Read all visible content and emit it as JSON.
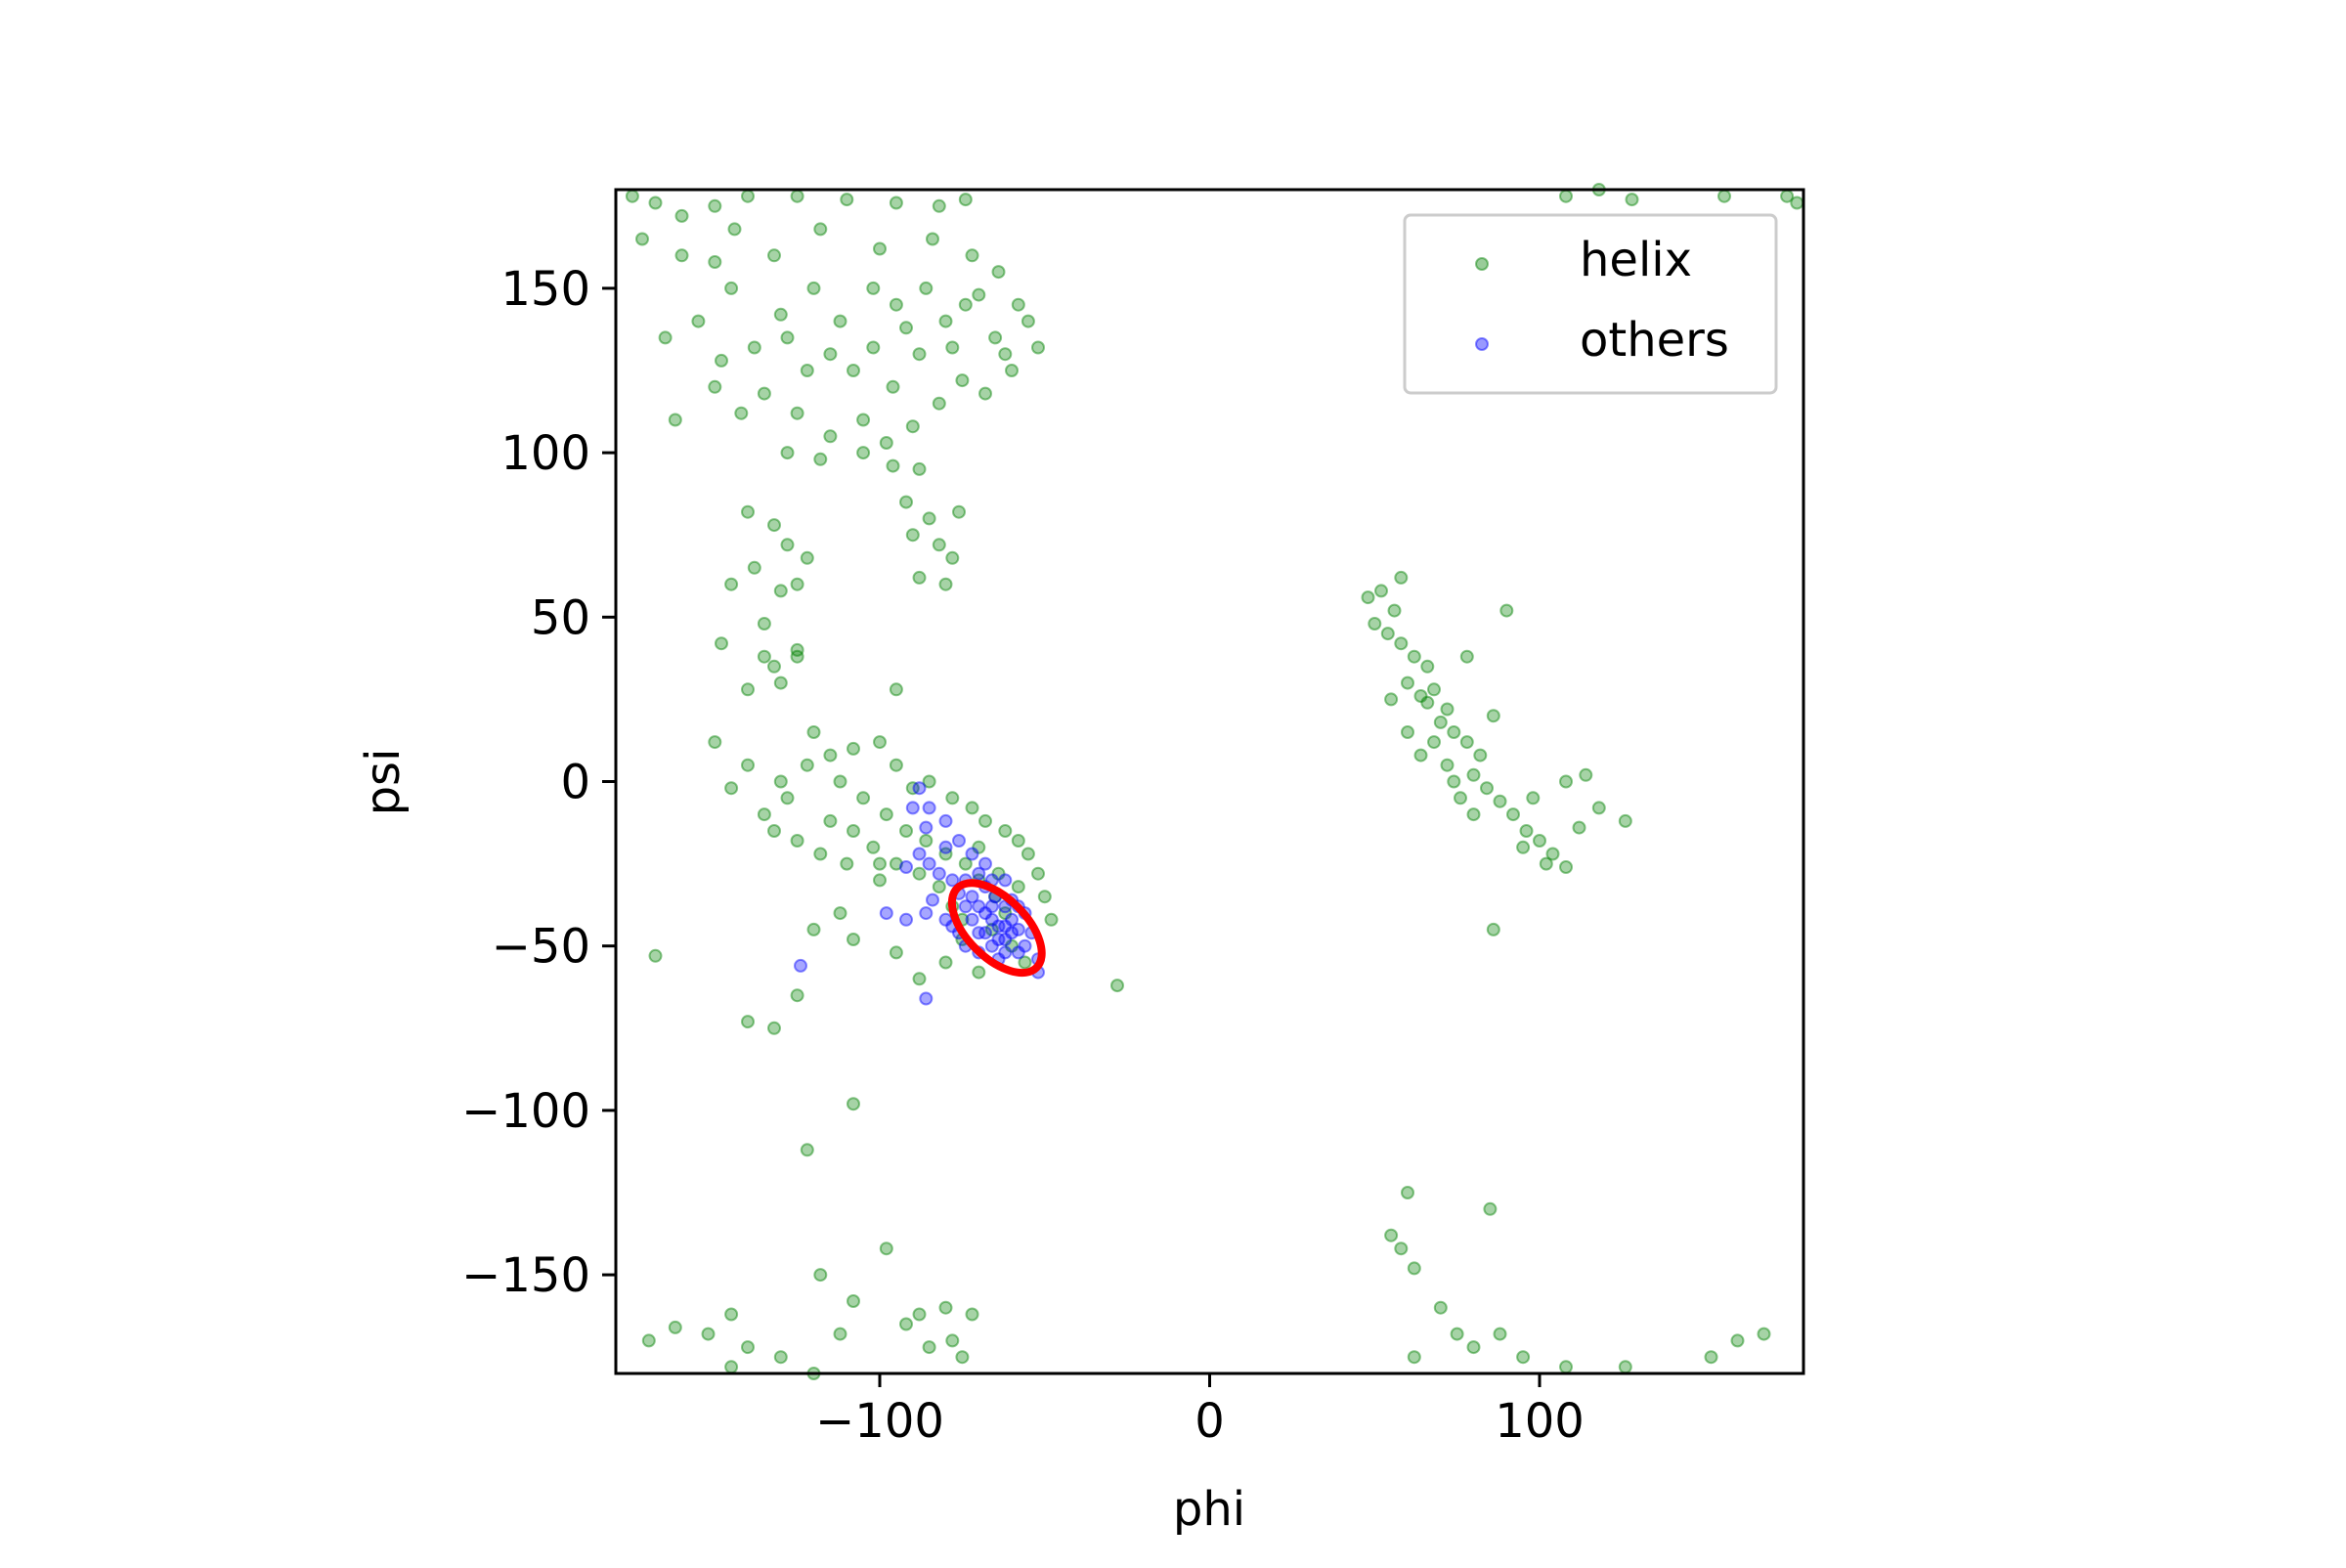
{
  "chart_data": {
    "type": "scatter",
    "title": "",
    "xlabel": "phi",
    "ylabel": "psi",
    "xlim": [
      -180,
      180
    ],
    "ylim": [
      -180,
      180
    ],
    "x_ticks": [
      -100,
      0,
      100
    ],
    "y_ticks": [
      150,
      100,
      50,
      0,
      -50,
      -100,
      -150
    ],
    "x_tick_labels": [
      "−100",
      "0",
      "100"
    ],
    "y_tick_labels": [
      "150",
      "100",
      "50",
      "0",
      "−50",
      "−100",
      "−150"
    ],
    "grid": false,
    "legend_position": "top-right",
    "colors": {
      "helix": "#008000",
      "others": "#0000ff",
      "ellipse": "#ff0000"
    },
    "series": [
      {
        "name": "helix",
        "points": [
          [
            -175,
            178
          ],
          [
            -168,
            176
          ],
          [
            -160,
            172
          ],
          [
            -150,
            175
          ],
          [
            -140,
            178
          ],
          [
            -125,
            178
          ],
          [
            -110,
            177
          ],
          [
            -95,
            176
          ],
          [
            -82,
            175
          ],
          [
            -74,
            177
          ],
          [
            -172,
            165
          ],
          [
            -160,
            160
          ],
          [
            -150,
            158
          ],
          [
            -145,
            150
          ],
          [
            -155,
            140
          ],
          [
            -165,
            135
          ],
          [
            -148,
            128
          ],
          [
            -138,
            132
          ],
          [
            -130,
            142
          ],
          [
            -120,
            150
          ],
          [
            -112,
            140
          ],
          [
            -102,
            132
          ],
          [
            -96,
            120
          ],
          [
            -88,
            130
          ],
          [
            -80,
            140
          ],
          [
            -70,
            148
          ],
          [
            -65,
            135
          ],
          [
            -60,
            125
          ],
          [
            -55,
            140
          ],
          [
            -52,
            132
          ],
          [
            -150,
            120
          ],
          [
            -142,
            112
          ],
          [
            -135,
            118
          ],
          [
            -125,
            112
          ],
          [
            -115,
            105
          ],
          [
            -105,
            110
          ],
          [
            -98,
            103
          ],
          [
            -90,
            108
          ],
          [
            -82,
            115
          ],
          [
            -75,
            122
          ],
          [
            -68,
            118
          ],
          [
            -62,
            130
          ],
          [
            -58,
            145
          ],
          [
            -64,
            155
          ],
          [
            -72,
            160
          ],
          [
            -84,
            165
          ],
          [
            -100,
            162
          ],
          [
            -118,
            168
          ],
          [
            -132,
            160
          ],
          [
            -144,
            168
          ],
          [
            -108,
            125
          ],
          [
            -115,
            130
          ],
          [
            -122,
            125
          ],
          [
            -128,
            135
          ],
          [
            -95,
            145
          ],
          [
            -86,
            150
          ],
          [
            -92,
            138
          ],
          [
            -78,
            132
          ],
          [
            -74,
            145
          ],
          [
            -102,
            150
          ],
          [
            -162,
            110
          ],
          [
            -128,
            100
          ],
          [
            -118,
            98
          ],
          [
            -105,
            100
          ],
          [
            -96,
            96
          ],
          [
            -88,
            95
          ],
          [
            -140,
            82
          ],
          [
            -132,
            78
          ],
          [
            -128,
            72
          ],
          [
            -138,
            65
          ],
          [
            -145,
            60
          ],
          [
            -130,
            58
          ],
          [
            -135,
            48
          ],
          [
            -122,
            68
          ],
          [
            -125,
            60
          ],
          [
            -92,
            85
          ],
          [
            -85,
            80
          ],
          [
            -82,
            72
          ],
          [
            -88,
            62
          ],
          [
            -80,
            60
          ],
          [
            -78,
            68
          ],
          [
            -90,
            75
          ],
          [
            -76,
            82
          ],
          [
            -148,
            42
          ],
          [
            -135,
            38
          ],
          [
            -130,
            30
          ],
          [
            -140,
            28
          ],
          [
            -125,
            40
          ],
          [
            -132,
            35
          ],
          [
            -150,
            12
          ],
          [
            -140,
            5
          ],
          [
            -145,
            -2
          ],
          [
            -130,
            0
          ],
          [
            -122,
            5
          ],
          [
            -115,
            8
          ],
          [
            -108,
            10
          ],
          [
            -100,
            12
          ],
          [
            -95,
            5
          ],
          [
            -90,
            -2
          ],
          [
            -85,
            0
          ],
          [
            -78,
            -5
          ],
          [
            -72,
            -8
          ],
          [
            -68,
            -12
          ],
          [
            -62,
            -15
          ],
          [
            -58,
            -18
          ],
          [
            -55,
            -22
          ],
          [
            -52,
            -28
          ],
          [
            -50,
            -35
          ],
          [
            -48,
            -42
          ],
          [
            -132,
            -15
          ],
          [
            -125,
            -18
          ],
          [
            -118,
            -22
          ],
          [
            -110,
            -25
          ],
          [
            -102,
            -20
          ],
          [
            -95,
            -25
          ],
          [
            -88,
            -28
          ],
          [
            -82,
            -32
          ],
          [
            -78,
            -38
          ],
          [
            -75,
            -42
          ],
          [
            -120,
            15
          ],
          [
            -112,
            0
          ],
          [
            -105,
            -5
          ],
          [
            -98,
            -10
          ],
          [
            -92,
            -15
          ],
          [
            -86,
            -18
          ],
          [
            -80,
            -22
          ],
          [
            -74,
            -25
          ],
          [
            -70,
            -30
          ],
          [
            -65,
            -35
          ],
          [
            -128,
            -5
          ],
          [
            -135,
            -10
          ],
          [
            -115,
            -12
          ],
          [
            -108,
            -15
          ],
          [
            -100,
            -30
          ],
          [
            -112,
            -40
          ],
          [
            -120,
            -45
          ],
          [
            -108,
            -48
          ],
          [
            -95,
            -52
          ],
          [
            -88,
            -60
          ],
          [
            -70,
            -58
          ],
          [
            -80,
            -55
          ],
          [
            -75,
            -48
          ],
          [
            -66,
            -45
          ],
          [
            -60,
            -50
          ],
          [
            -56,
            -55
          ],
          [
            -62,
            -40
          ],
          [
            -58,
            -32
          ],
          [
            -64,
            -28
          ],
          [
            -70,
            -20
          ],
          [
            -168,
            -53
          ],
          [
            -125,
            -65
          ],
          [
            -140,
            -73
          ],
          [
            -132,
            -75
          ],
          [
            -100,
            -25
          ],
          [
            -95,
            28
          ],
          [
            -125,
            38
          ],
          [
            -28,
            -62
          ],
          [
            -108,
            -98
          ],
          [
            -122,
            -112
          ],
          [
            -98,
            -142
          ],
          [
            -118,
            -150
          ],
          [
            -108,
            -158
          ],
          [
            -88,
            -162
          ],
          [
            -80,
            -160
          ],
          [
            -72,
            -162
          ],
          [
            -92,
            -165
          ],
          [
            -112,
            -168
          ],
          [
            -170,
            -170
          ],
          [
            -162,
            -166
          ],
          [
            -152,
            -168
          ],
          [
            -145,
            -162
          ],
          [
            -140,
            -172
          ],
          [
            -130,
            -175
          ],
          [
            -120,
            -180
          ],
          [
            -85,
            -172
          ],
          [
            -78,
            -170
          ],
          [
            -75,
            -175
          ],
          [
            -145,
            -178
          ],
          [
            48,
            56
          ],
          [
            52,
            58
          ],
          [
            56,
            52
          ],
          [
            50,
            48
          ],
          [
            54,
            45
          ],
          [
            58,
            42
          ],
          [
            62,
            38
          ],
          [
            66,
            35
          ],
          [
            60,
            30
          ],
          [
            64,
            26
          ],
          [
            68,
            28
          ],
          [
            72,
            22
          ],
          [
            70,
            18
          ],
          [
            74,
            15
          ],
          [
            78,
            12
          ],
          [
            82,
            8
          ],
          [
            80,
            2
          ],
          [
            84,
            -2
          ],
          [
            88,
            -6
          ],
          [
            92,
            -10
          ],
          [
            96,
            -15
          ],
          [
            100,
            -18
          ],
          [
            104,
            -22
          ],
          [
            108,
            -26
          ],
          [
            112,
            -14
          ],
          [
            118,
            -8
          ],
          [
            126,
            -12
          ],
          [
            86,
            20
          ],
          [
            78,
            38
          ],
          [
            90,
            52
          ],
          [
            58,
            62
          ],
          [
            66,
            24
          ],
          [
            72,
            5
          ],
          [
            76,
            -5
          ],
          [
            80,
            -10
          ],
          [
            95,
            -20
          ],
          [
            102,
            -25
          ],
          [
            108,
            0
          ],
          [
            114,
            2
          ],
          [
            98,
            -5
          ],
          [
            55,
            25
          ],
          [
            60,
            15
          ],
          [
            64,
            8
          ],
          [
            68,
            12
          ],
          [
            74,
            0
          ],
          [
            86,
            -45
          ],
          [
            55,
            -138
          ],
          [
            60,
            -125
          ],
          [
            58,
            -142
          ],
          [
            62,
            -148
          ],
          [
            85,
            -130
          ],
          [
            62,
            -175
          ],
          [
            70,
            -160
          ],
          [
            75,
            -168
          ],
          [
            80,
            -172
          ],
          [
            88,
            -168
          ],
          [
            95,
            -175
          ],
          [
            108,
            -178
          ],
          [
            126,
            -178
          ],
          [
            152,
            -175
          ],
          [
            160,
            -170
          ],
          [
            168,
            -168
          ],
          [
            108,
            178
          ],
          [
            118,
            180
          ],
          [
            128,
            177
          ],
          [
            156,
            178
          ],
          [
            175,
            178
          ],
          [
            178,
            176
          ]
        ]
      },
      {
        "name": "others",
        "points": [
          [
            -88,
            -2
          ],
          [
            -85,
            -8
          ],
          [
            -80,
            -12
          ],
          [
            -76,
            -18
          ],
          [
            -72,
            -22
          ],
          [
            -70,
            -28
          ],
          [
            -68,
            -32
          ],
          [
            -65,
            -35
          ],
          [
            -62,
            -38
          ],
          [
            -60,
            -42
          ],
          [
            -58,
            -45
          ],
          [
            -62,
            -48
          ],
          [
            -66,
            -50
          ],
          [
            -70,
            -46
          ],
          [
            -72,
            -42
          ],
          [
            -74,
            -38
          ],
          [
            -76,
            -34
          ],
          [
            -78,
            -30
          ],
          [
            -82,
            -28
          ],
          [
            -85,
            -25
          ],
          [
            -88,
            -22
          ],
          [
            -92,
            -26
          ],
          [
            -98,
            -40
          ],
          [
            -92,
            -42
          ],
          [
            -86,
            -40
          ],
          [
            -80,
            -42
          ],
          [
            -84,
            -36
          ],
          [
            -78,
            -44
          ],
          [
            -68,
            -40
          ],
          [
            -64,
            -44
          ],
          [
            -60,
            -36
          ],
          [
            -56,
            -40
          ],
          [
            -54,
            -46
          ],
          [
            -58,
            -52
          ],
          [
            -64,
            -54
          ],
          [
            -70,
            -52
          ],
          [
            -74,
            -50
          ],
          [
            -76,
            -46
          ],
          [
            -66,
            -38
          ],
          [
            -62,
            -30
          ],
          [
            -72,
            -35
          ],
          [
            -68,
            -25
          ],
          [
            -80,
            -20
          ],
          [
            -86,
            -14
          ],
          [
            -90,
            -8
          ],
          [
            -66,
            -42
          ],
          [
            -60,
            -46
          ],
          [
            -56,
            -50
          ],
          [
            -52,
            -54
          ],
          [
            -62,
            -52
          ],
          [
            -124,
            -56
          ],
          [
            -86,
            -66
          ],
          [
            -52,
            -58
          ],
          [
            -74,
            -30
          ],
          [
            -66,
            -30
          ],
          [
            -70,
            -38
          ],
          [
            -62,
            -44
          ],
          [
            -58,
            -38
          ],
          [
            -64,
            -48
          ],
          [
            -68,
            -46
          ]
        ]
      }
    ],
    "ellipse": {
      "center": [
        -64.5,
        -44.5
      ],
      "semi_axis_major": 17,
      "semi_axis_minor": 9,
      "angle_deg": -45
    }
  }
}
